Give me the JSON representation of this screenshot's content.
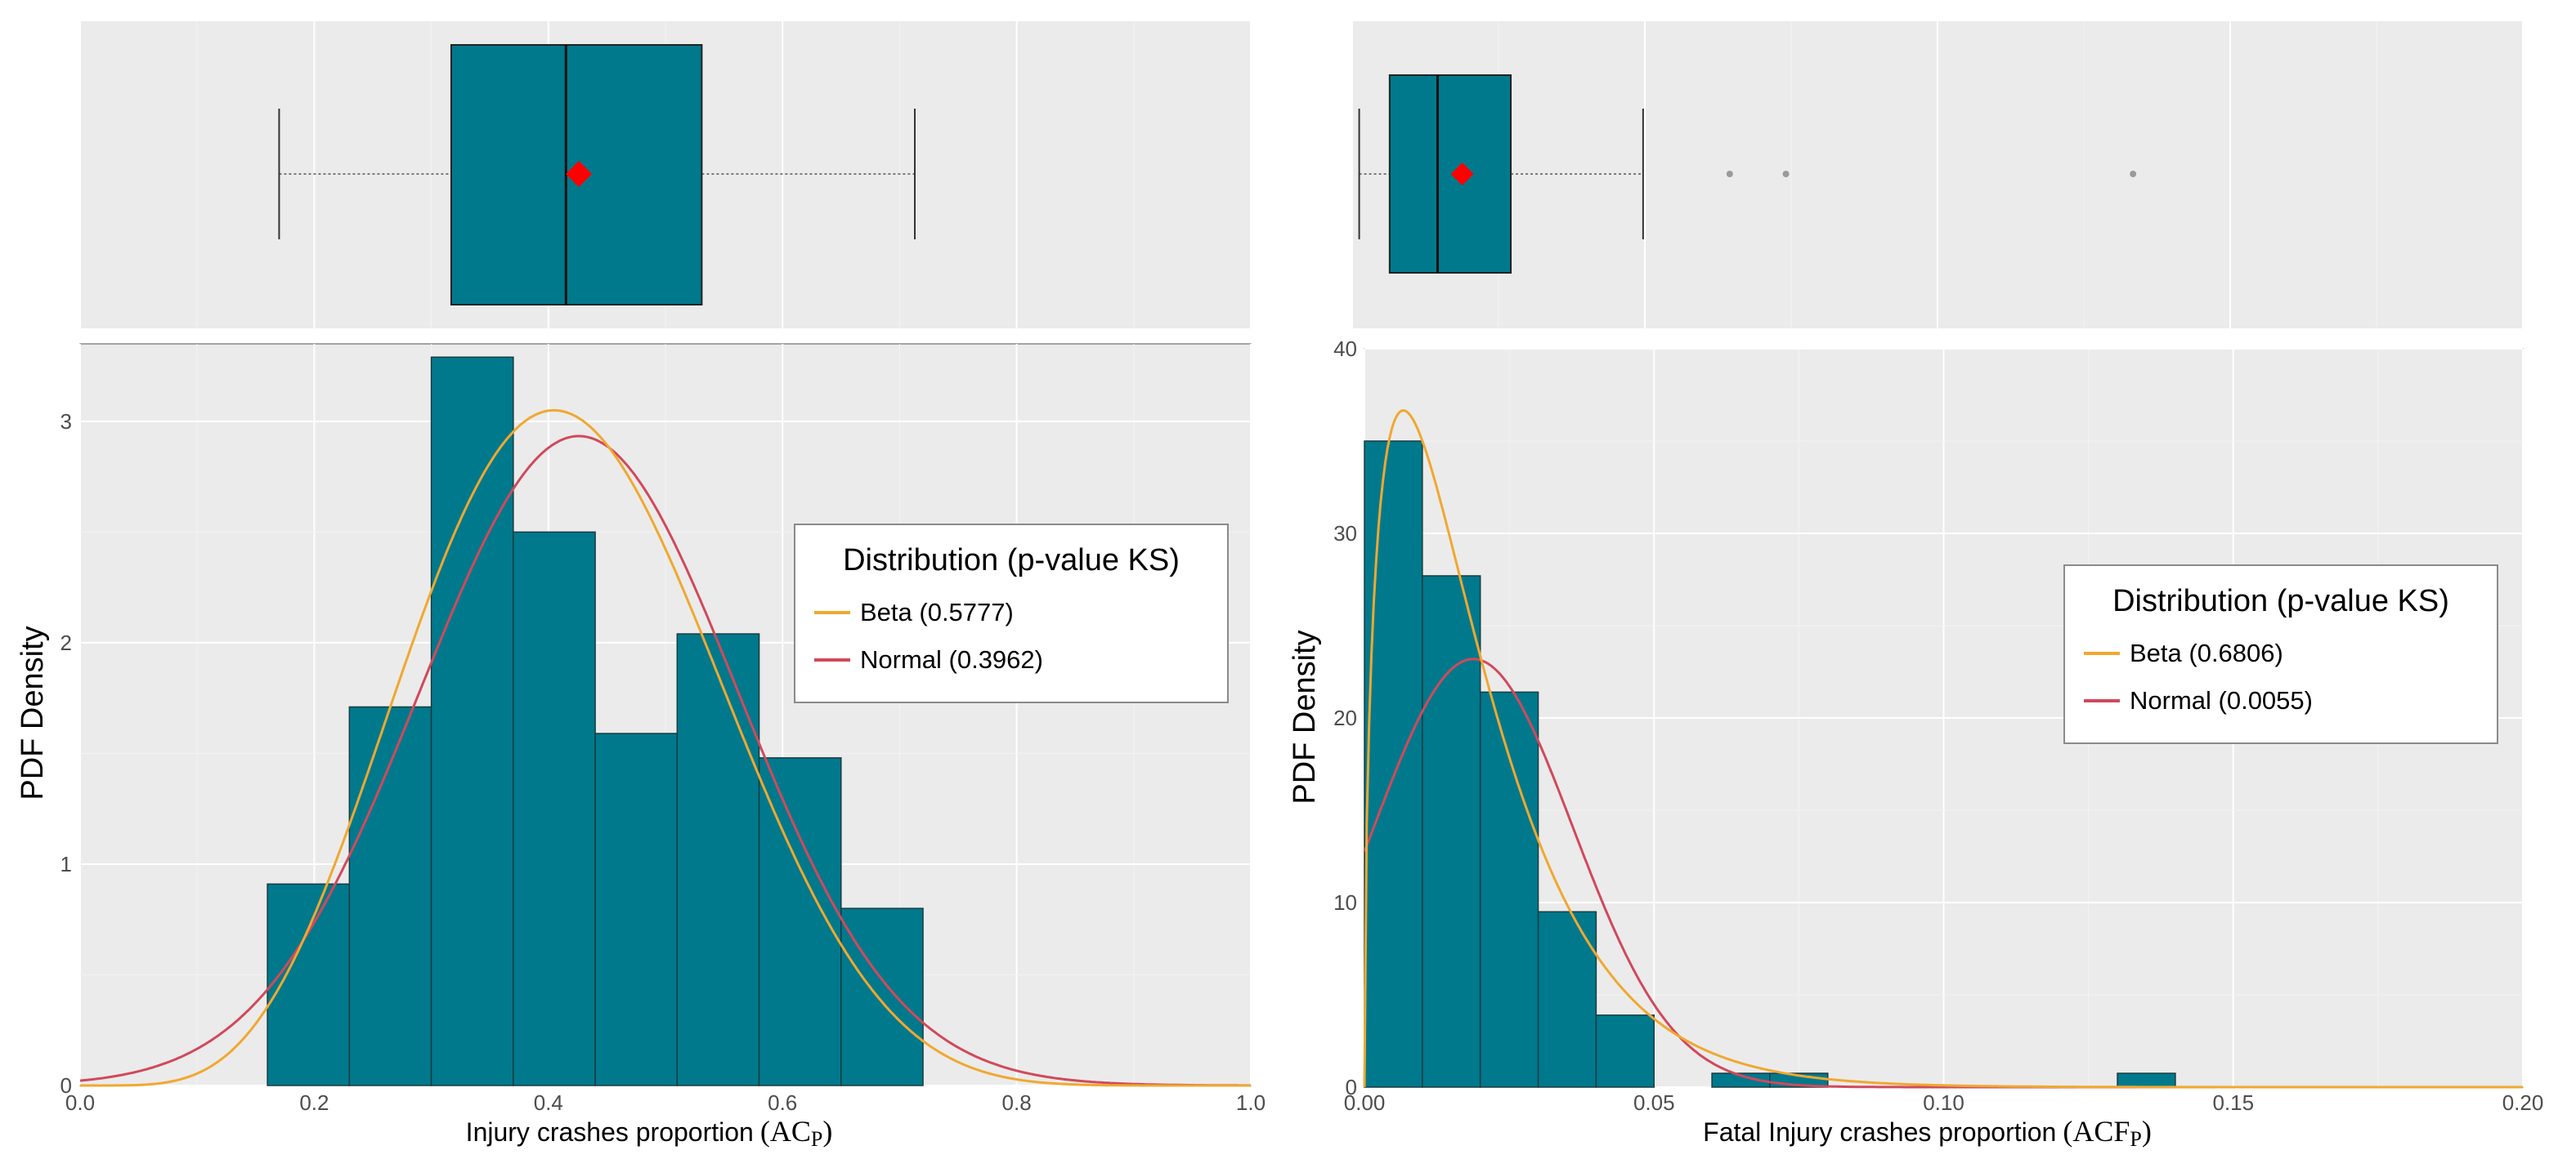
{
  "colors": {
    "bar_fill": "#00798c",
    "bar_stroke": "#1a3b40",
    "panel_bg": "#ebebeb",
    "grid_major": "#ffffff",
    "grid_minor": "#f3f3f3",
    "beta": "#f0a830",
    "normal": "#d1495b",
    "mean_marker": "#ff0000",
    "outlier": "#9a9a9a",
    "axis_text": "#4d4d4d"
  },
  "chart_data": [
    {
      "type": "histogram",
      "name": "injury",
      "xlabel": "Injury crashes proportion",
      "xlabel_math": "(AC",
      "xlabel_sub": "P",
      "xlabel_close": ")",
      "ylabel": "PDF Density",
      "xlim": [
        0,
        1
      ],
      "ylim": [
        0,
        3.35
      ],
      "xticks": [
        0,
        0.2,
        0.4,
        0.6,
        0.8,
        1.0
      ],
      "xtick_labels": [
        "0.0",
        "0.2",
        "0.4",
        "0.6",
        "0.8",
        "1.0"
      ],
      "yticks": [
        0,
        1,
        2,
        3
      ],
      "ytick_labels": [
        "0",
        "1",
        "2",
        "3"
      ],
      "bins": [
        {
          "x0": 0.16,
          "x1": 0.23,
          "density": 0.91
        },
        {
          "x0": 0.23,
          "x1": 0.3,
          "density": 1.71
        },
        {
          "x0": 0.3,
          "x1": 0.37,
          "density": 3.29
        },
        {
          "x0": 0.37,
          "x1": 0.44,
          "density": 2.5
        },
        {
          "x0": 0.44,
          "x1": 0.51,
          "density": 1.59
        },
        {
          "x0": 0.51,
          "x1": 0.58,
          "density": 2.04
        },
        {
          "x0": 0.58,
          "x1": 0.65,
          "density": 1.48
        },
        {
          "x0": 0.65,
          "x1": 0.72,
          "density": 0.8
        }
      ],
      "fits": {
        "beta": {
          "a": 6.1,
          "b": 8.5
        },
        "normal": {
          "mean": 0.426,
          "sd": 0.136
        }
      },
      "legend": {
        "title": "Distribution (p-value KS)",
        "entries": [
          {
            "label": "Beta (0.5777)",
            "series": "beta"
          },
          {
            "label": "Normal (0.3962)",
            "series": "normal"
          }
        ]
      },
      "boxplot": {
        "min": 0.17,
        "q1": 0.317,
        "median": 0.415,
        "mean": 0.426,
        "q3": 0.531,
        "max": 0.713,
        "outliers": []
      }
    },
    {
      "type": "histogram",
      "name": "fatal",
      "xlabel": "Fatal Injury crashes proportion",
      "xlabel_math": "(ACF",
      "xlabel_sub": "P",
      "xlabel_close": ")",
      "ylabel": "PDF Density",
      "xlim": [
        0,
        0.2
      ],
      "ylim": [
        0,
        40
      ],
      "xticks": [
        0,
        0.05,
        0.1,
        0.15,
        0.2
      ],
      "xtick_labels": [
        "0.00",
        "0.05",
        "0.10",
        "0.15",
        "0.20"
      ],
      "yticks": [
        0,
        10,
        20,
        30,
        40
      ],
      "ytick_labels": [
        "0",
        "10",
        "20",
        "30",
        "40"
      ],
      "bins": [
        {
          "x0": 0.0,
          "x1": 0.01,
          "density": 35.0
        },
        {
          "x0": 0.01,
          "x1": 0.02,
          "density": 27.7
        },
        {
          "x0": 0.02,
          "x1": 0.03,
          "density": 21.4
        },
        {
          "x0": 0.03,
          "x1": 0.04,
          "density": 9.5
        },
        {
          "x0": 0.04,
          "x1": 0.05,
          "density": 3.9
        },
        {
          "x0": 0.05,
          "x1": 0.06,
          "density": 0
        },
        {
          "x0": 0.06,
          "x1": 0.07,
          "density": 0.75
        },
        {
          "x0": 0.07,
          "x1": 0.08,
          "density": 0.75
        },
        {
          "x0": 0.08,
          "x1": 0.09,
          "density": 0
        },
        {
          "x0": 0.09,
          "x1": 0.1,
          "density": 0
        },
        {
          "x0": 0.1,
          "x1": 0.11,
          "density": 0
        },
        {
          "x0": 0.11,
          "x1": 0.12,
          "density": 0
        },
        {
          "x0": 0.12,
          "x1": 0.13,
          "density": 0
        },
        {
          "x0": 0.13,
          "x1": 0.14,
          "density": 0.75
        }
      ],
      "fits": {
        "beta": {
          "a": 1.5,
          "b": 75
        },
        "normal": {
          "mean": 0.0188,
          "sd": 0.0172
        }
      },
      "legend": {
        "title": "Distribution (p-value KS)",
        "entries": [
          {
            "label": "Beta (0.6806)",
            "series": "beta"
          },
          {
            "label": "Normal (0.0055)",
            "series": "normal"
          }
        ]
      },
      "boxplot": {
        "min": 0.0012,
        "q1": 0.0064,
        "median": 0.0146,
        "mean": 0.0188,
        "q3": 0.0271,
        "max": 0.0497,
        "outliers": [
          0.0645,
          0.0741,
          0.1334
        ]
      }
    }
  ]
}
